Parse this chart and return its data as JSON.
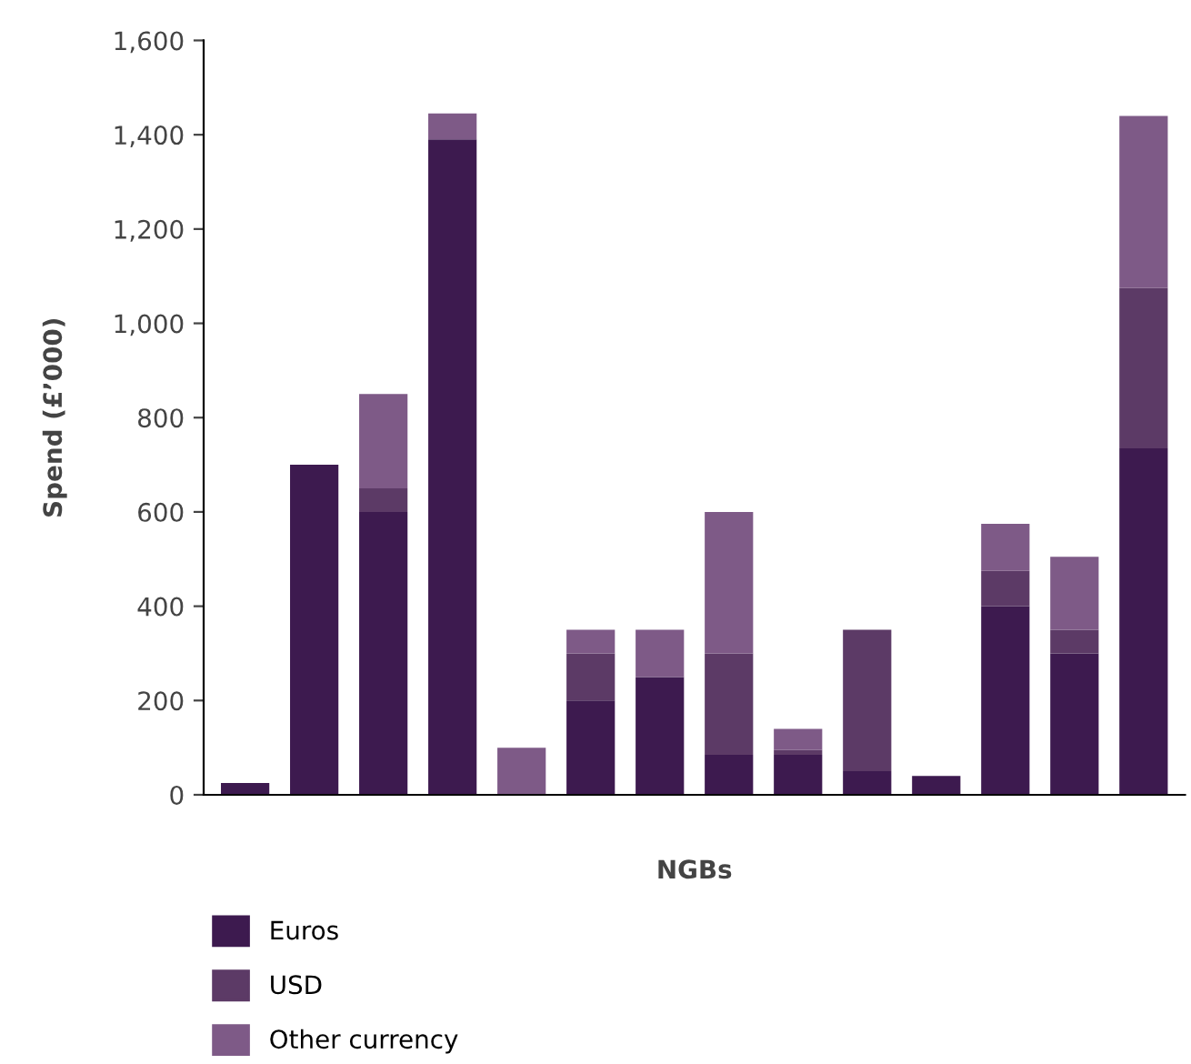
{
  "chart_data": {
    "type": "bar",
    "stacked": true,
    "xlabel": "NGBs",
    "ylabel": "Spend (£’000)",
    "categories": [
      null,
      null,
      null,
      null,
      null,
      null,
      null,
      null,
      null,
      null,
      null,
      null,
      null,
      null
    ],
    "series": [
      {
        "name": "Euros",
        "color": "#3d1a4f",
        "values": [
          25,
          700,
          600,
          1390,
          0,
          200,
          250,
          85,
          85,
          50,
          40,
          400,
          300,
          735
        ]
      },
      {
        "name": "USD",
        "color": "#5c3a66",
        "values": [
          0,
          0,
          50,
          0,
          0,
          100,
          0,
          215,
          10,
          300,
          0,
          75,
          50,
          340
        ]
      },
      {
        "name": "Other currency",
        "color": "#7e5a87",
        "values": [
          0,
          0,
          200,
          55,
          100,
          50,
          100,
          300,
          45,
          0,
          0,
          100,
          155,
          365
        ]
      }
    ],
    "ylim": [
      0,
      1600
    ],
    "yticks": [
      0,
      200,
      400,
      600,
      800,
      {
        "value": 1000,
        "label": "1,000"
      },
      {
        "value": 1200,
        "label": "1,200"
      },
      {
        "value": 1400,
        "label": "1,400"
      },
      {
        "value": 1600,
        "label": "1,600"
      }
    ],
    "legend": "bottom left"
  }
}
